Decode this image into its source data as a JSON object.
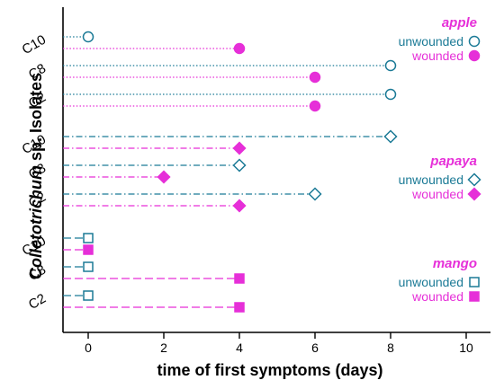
{
  "chart_data": {
    "type": "scatter",
    "xlabel": "time of first symptoms (days)",
    "ylabel_italic": "Colletotrichum",
    "ylabel_rest": " sp. Isolates",
    "xlim": [
      -0.6,
      10.6
    ],
    "xticks": [
      0,
      2,
      4,
      6,
      8,
      10
    ],
    "categories": [
      "C10",
      "C8",
      "C2"
    ],
    "groups": [
      {
        "name": "apple",
        "marker": "circle",
        "line": "dotted",
        "series": [
          {
            "name": "unwounded",
            "color": "#1b7a96",
            "filled": false,
            "values": [
              {
                "isolate": "C10",
                "x": 0
              },
              {
                "isolate": "C8",
                "x": 8
              },
              {
                "isolate": "C2",
                "x": 8
              }
            ]
          },
          {
            "name": "wounded",
            "color": "#e62fd8",
            "filled": true,
            "values": [
              {
                "isolate": "C10",
                "x": 4
              },
              {
                "isolate": "C8",
                "x": 6
              },
              {
                "isolate": "C2",
                "x": 6
              }
            ]
          }
        ]
      },
      {
        "name": "papaya",
        "marker": "diamond",
        "line": "dashdot",
        "series": [
          {
            "name": "unwounded",
            "color": "#1b7a96",
            "filled": false,
            "values": [
              {
                "isolate": "C10",
                "x": 8
              },
              {
                "isolate": "C8",
                "x": 4
              },
              {
                "isolate": "C2",
                "x": 6
              }
            ]
          },
          {
            "name": "wounded",
            "color": "#e62fd8",
            "filled": true,
            "values": [
              {
                "isolate": "C10",
                "x": 4
              },
              {
                "isolate": "C8",
                "x": 2
              },
              {
                "isolate": "C2",
                "x": 4
              }
            ]
          }
        ]
      },
      {
        "name": "mango",
        "marker": "square",
        "line": "dashed",
        "series": [
          {
            "name": "unwounded",
            "color": "#1b7a96",
            "filled": false,
            "values": [
              {
                "isolate": "C10",
                "x": 0
              },
              {
                "isolate": "C8",
                "x": 0
              },
              {
                "isolate": "C2",
                "x": 0
              }
            ]
          },
          {
            "name": "wounded",
            "color": "#e62fd8",
            "filled": true,
            "values": [
              {
                "isolate": "C10",
                "x": 0
              },
              {
                "isolate": "C8",
                "x": 4
              },
              {
                "isolate": "C2",
                "x": 4
              }
            ]
          }
        ]
      }
    ],
    "legend_position": "right"
  }
}
